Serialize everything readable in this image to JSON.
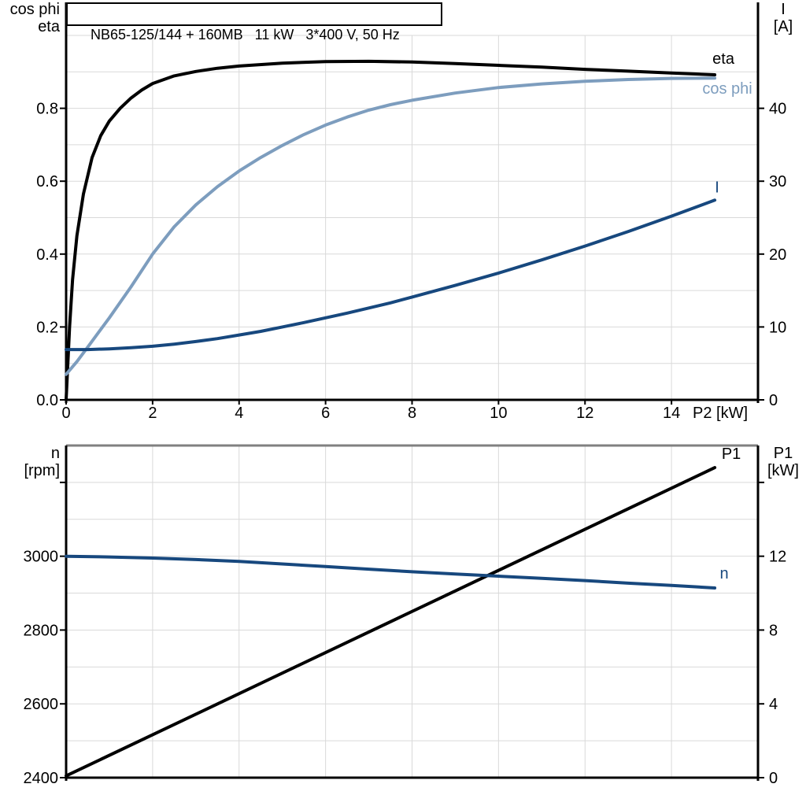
{
  "colors": {
    "grid": "#D9D9D9",
    "axis": "#000000",
    "frame": "#808080",
    "black_curve": "#000000",
    "light_blue": "#7D9DBE",
    "dark_blue": "#17487E"
  },
  "chart_data": [
    {
      "type": "line",
      "title": "NB65-125/144 + 160MB   11 kW   3*400 V, 50 Hz",
      "x_axis": {
        "label": "P2 [kW]",
        "min": 0,
        "max": 16,
        "grid_step": 2,
        "ticks": [
          {
            "v": 0,
            "label": "0"
          },
          {
            "v": 2,
            "label": "2"
          },
          {
            "v": 4,
            "label": "4"
          },
          {
            "v": 6,
            "label": "6"
          },
          {
            "v": 8,
            "label": "8"
          },
          {
            "v": 10,
            "label": "10"
          },
          {
            "v": 12,
            "label": "12"
          },
          {
            "v": 14,
            "label": "14"
          }
        ]
      },
      "left_axis": {
        "label_lines": [
          "cos phi",
          "eta"
        ],
        "min": 0,
        "max": 1.0,
        "grid_step": 0.1,
        "ticks": [
          {
            "v": 0.0,
            "label": "0.0"
          },
          {
            "v": 0.2,
            "label": "0.2"
          },
          {
            "v": 0.4,
            "label": "0.4"
          },
          {
            "v": 0.6,
            "label": "0.6"
          },
          {
            "v": 0.8,
            "label": "0.8"
          }
        ]
      },
      "right_axis": {
        "label_lines": [
          "I",
          "[A]"
        ],
        "min": 0,
        "max": 50,
        "ticks": [
          {
            "v": 0,
            "label": "0"
          },
          {
            "v": 10,
            "label": "10"
          },
          {
            "v": 20,
            "label": "20"
          },
          {
            "v": 30,
            "label": "30"
          },
          {
            "v": 40,
            "label": "40"
          }
        ]
      },
      "series": [
        {
          "name": "eta",
          "label": "eta",
          "axis": "left",
          "color": "#000000",
          "points": [
            [
              0,
              0
            ],
            [
              0.08,
              0.2
            ],
            [
              0.15,
              0.33
            ],
            [
              0.25,
              0.45
            ],
            [
              0.4,
              0.565
            ],
            [
              0.6,
              0.665
            ],
            [
              0.8,
              0.725
            ],
            [
              1,
              0.765
            ],
            [
              1.25,
              0.8
            ],
            [
              1.5,
              0.828
            ],
            [
              1.75,
              0.85
            ],
            [
              2,
              0.868
            ],
            [
              2.5,
              0.889
            ],
            [
              3,
              0.901
            ],
            [
              3.5,
              0.91
            ],
            [
              4,
              0.916
            ],
            [
              5,
              0.924
            ],
            [
              6,
              0.928
            ],
            [
              7,
              0.929
            ],
            [
              8,
              0.927
            ],
            [
              9,
              0.923
            ],
            [
              10,
              0.918
            ],
            [
              11,
              0.913
            ],
            [
              12,
              0.907
            ],
            [
              13,
              0.902
            ],
            [
              14,
              0.897
            ],
            [
              15,
              0.892
            ]
          ]
        },
        {
          "name": "cos phi",
          "label": "cos phi",
          "axis": "left",
          "color": "#7D9DBE",
          "points": [
            [
              0,
              0.07
            ],
            [
              0.25,
              0.105
            ],
            [
              0.5,
              0.145
            ],
            [
              0.75,
              0.185
            ],
            [
              1,
              0.225
            ],
            [
              1.5,
              0.31
            ],
            [
              2,
              0.4
            ],
            [
              2.5,
              0.475
            ],
            [
              3,
              0.535
            ],
            [
              3.5,
              0.585
            ],
            [
              4,
              0.628
            ],
            [
              4.5,
              0.665
            ],
            [
              5,
              0.698
            ],
            [
              5.5,
              0.728
            ],
            [
              6,
              0.754
            ],
            [
              6.5,
              0.776
            ],
            [
              7,
              0.795
            ],
            [
              7.5,
              0.81
            ],
            [
              8,
              0.822
            ],
            [
              9,
              0.842
            ],
            [
              10,
              0.857
            ],
            [
              11,
              0.867
            ],
            [
              12,
              0.874
            ],
            [
              13,
              0.879
            ],
            [
              14,
              0.882
            ],
            [
              15,
              0.883
            ]
          ]
        },
        {
          "name": "I",
          "label": "I",
          "axis": "right",
          "color": "#17487E",
          "points": [
            [
              0,
              6.9
            ],
            [
              0.5,
              6.9
            ],
            [
              1,
              7.0
            ],
            [
              1.5,
              7.15
            ],
            [
              2,
              7.35
            ],
            [
              2.5,
              7.65
            ],
            [
              3,
              8.0
            ],
            [
              3.5,
              8.4
            ],
            [
              4,
              8.9
            ],
            [
              4.5,
              9.4
            ],
            [
              5,
              10.0
            ],
            [
              5.5,
              10.6
            ],
            [
              6,
              11.25
            ],
            [
              6.5,
              11.9
            ],
            [
              7,
              12.6
            ],
            [
              7.5,
              13.3
            ],
            [
              8,
              14.1
            ],
            [
              9,
              15.7
            ],
            [
              10,
              17.4
            ],
            [
              11,
              19.2
            ],
            [
              12,
              21.1
            ],
            [
              13,
              23.1
            ],
            [
              14,
              25.2
            ],
            [
              15,
              27.4
            ]
          ]
        }
      ]
    },
    {
      "type": "line",
      "title": "",
      "x_axis": {
        "label": "",
        "min": 0,
        "max": 16,
        "grid_step": 2,
        "ticks": []
      },
      "left_axis": {
        "label_lines": [
          "n",
          "[rpm]"
        ],
        "min": 2400,
        "max": 3300,
        "grid_step": 100,
        "ticks": [
          {
            "v": 2400,
            "label": "2400"
          },
          {
            "v": 2600,
            "label": "2600"
          },
          {
            "v": 2800,
            "label": "2800"
          },
          {
            "v": 3000,
            "label": "3000"
          },
          {
            "v": 3200,
            "label": ""
          }
        ]
      },
      "right_axis": {
        "label_lines": [
          "P1",
          "[kW]"
        ],
        "min": 0,
        "max": 18,
        "ticks": [
          {
            "v": 0,
            "label": "0"
          },
          {
            "v": 4,
            "label": "4"
          },
          {
            "v": 8,
            "label": "8"
          },
          {
            "v": 12,
            "label": "12"
          },
          {
            "v": 16,
            "label": ""
          }
        ]
      },
      "series": [
        {
          "name": "P1",
          "label": "P1",
          "axis": "right",
          "color": "#000000",
          "points": [
            [
              0,
              0.1
            ],
            [
              15,
              16.8
            ]
          ]
        },
        {
          "name": "n",
          "label": "n",
          "axis": "left",
          "color": "#17487E",
          "points": [
            [
              0,
              3000
            ],
            [
              1,
              2998
            ],
            [
              2,
              2995
            ],
            [
              3,
              2991
            ],
            [
              4,
              2986
            ],
            [
              5,
              2979
            ],
            [
              6,
              2972
            ],
            [
              7,
              2965
            ],
            [
              8,
              2958
            ],
            [
              9,
              2952
            ],
            [
              10,
              2946
            ],
            [
              11,
              2940
            ],
            [
              12,
              2934
            ],
            [
              13,
              2927
            ],
            [
              14,
              2921
            ],
            [
              15,
              2914
            ]
          ]
        }
      ]
    }
  ]
}
